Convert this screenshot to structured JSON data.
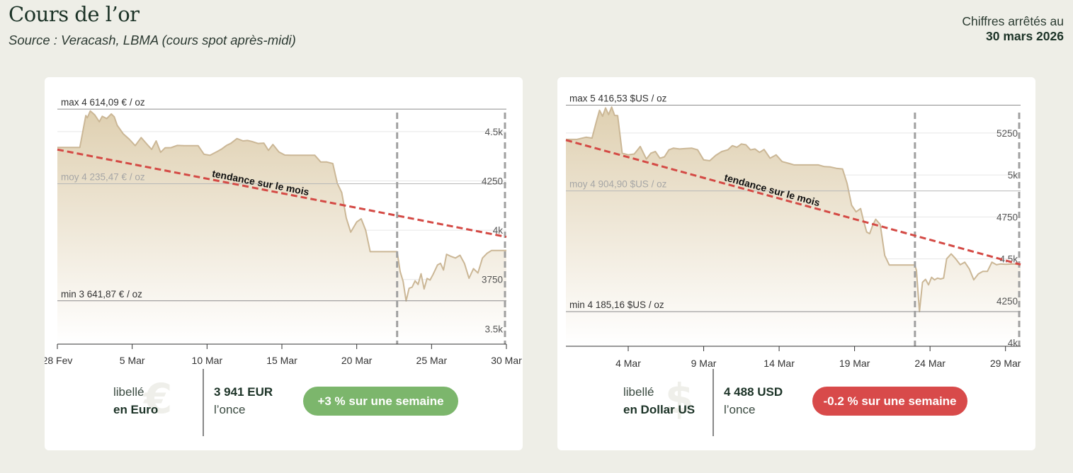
{
  "header": {
    "title": "Cours de l’or",
    "source": "Source : Veracash, LBMA (cours spot après-midi)",
    "asof_label": "Chiffres arrêtés au",
    "asof_date": "30 mars 2026"
  },
  "colors": {
    "line": "#cbb796",
    "area_top": "#dfd0b1",
    "trend": "#d44a45",
    "badge_up": "#7cb66c",
    "badge_down": "#d84a4a"
  },
  "cards": [
    {
      "currency_label": "libellé",
      "currency_name": "en Euro",
      "currency_symbol": "€",
      "price": "3 941 EUR",
      "price_unit": "l’once",
      "change_text": "+3 % sur une semaine",
      "change_direction": "up"
    },
    {
      "currency_label": "libellé",
      "currency_name": "en Dollar US",
      "currency_symbol": "$",
      "price": "4 488 USD",
      "price_unit": "l’once",
      "change_text": "-0.2 % sur une semaine",
      "change_direction": "down"
    }
  ],
  "chart_data": [
    {
      "type": "area",
      "currency": "EUR",
      "trend_label": "tendance sur le mois",
      "x_ticks": [
        {
          "day": 0,
          "label": "28 Fev"
        },
        {
          "day": 5,
          "label": "5 Mar"
        },
        {
          "day": 10,
          "label": "10 Mar"
        },
        {
          "day": 15,
          "label": "15 Mar"
        },
        {
          "day": 20,
          "label": "20 Mar"
        },
        {
          "day": 25,
          "label": "25 Mar"
        },
        {
          "day": 30,
          "label": "30 Mar"
        }
      ],
      "xlim": [
        0,
        30
      ],
      "ylim": [
        3422,
        4726
      ],
      "y_ticks": [
        {
          "value": 3500,
          "label": "3.5k"
        },
        {
          "value": 3750,
          "label": "3750"
        },
        {
          "value": 4000,
          "label": "4k"
        },
        {
          "value": 4250,
          "label": "4250"
        },
        {
          "value": 4500,
          "label": "4.5k"
        }
      ],
      "ref_lines": [
        {
          "value": 4614.09,
          "label": "max 4 614,09 € / oz",
          "kind": "max"
        },
        {
          "value": 4235.47,
          "label": "moy 4 235,47 € / oz",
          "kind": "avg"
        },
        {
          "value": 3641.87,
          "label": "min 3 641,87 € / oz",
          "kind": "min"
        }
      ],
      "markers": [
        22.7,
        30
      ],
      "trend": {
        "start": [
          0,
          4409
        ],
        "end": [
          30,
          3966
        ]
      },
      "series": [
        {
          "x": [
            0,
            0.7,
            1.5,
            1.9,
            2.0,
            2.2,
            2.5,
            2.8,
            3.0,
            3.3,
            3.6,
            3.8,
            4.0,
            4.4,
            4.8,
            5.2,
            5.6,
            6.0,
            6.3,
            6.6,
            6.9,
            7.2,
            7.6,
            8.0,
            8.5,
            9.0,
            9.4,
            9.8,
            10.2,
            10.7,
            11.0,
            11.3,
            11.6,
            12.0,
            12.4,
            12.7,
            13.0,
            13.4,
            13.8,
            14.1,
            14.4,
            14.8,
            15.2,
            15.6,
            16.0,
            16.4,
            16.8,
            17.2,
            17.6,
            18.0,
            18.4,
            18.7,
            19.0,
            19.3,
            19.6,
            20.0,
            20.3,
            20.6,
            20.9,
            21.2,
            21.5,
            21.8,
            22.1,
            22.4,
            22.7,
            22.9,
            23.1,
            23.3,
            23.5,
            23.7,
            23.9,
            24.1,
            24.3,
            24.5,
            24.7,
            24.9,
            25.1,
            25.4,
            25.6,
            25.8,
            26.0,
            26.3,
            26.6,
            26.9,
            27.2,
            27.5,
            27.8,
            28.1,
            28.4,
            28.7,
            29.0,
            29.5,
            30.0
          ],
          "values": [
            4420,
            4420,
            4420,
            4582,
            4570,
            4605,
            4585,
            4550,
            4578,
            4566,
            4590,
            4575,
            4532,
            4489,
            4462,
            4429,
            4470,
            4435,
            4410,
            4453,
            4395,
            4418,
            4419,
            4430,
            4429,
            4429,
            4429,
            4385,
            4380,
            4400,
            4413,
            4430,
            4441,
            4465,
            4453,
            4455,
            4450,
            4440,
            4442,
            4405,
            4435,
            4397,
            4381,
            4380,
            4380,
            4380,
            4380,
            4380,
            4346,
            4346,
            4338,
            4238,
            4191,
            4062,
            3990,
            4042,
            4058,
            4000,
            3891,
            3891,
            3891,
            3891,
            3891,
            3891,
            3891,
            3790,
            3740,
            3641,
            3705,
            3711,
            3743,
            3725,
            3779,
            3702,
            3755,
            3747,
            3775,
            3824,
            3832,
            3798,
            3878,
            3867,
            3859,
            3873,
            3831,
            3756,
            3805,
            3783,
            3859,
            3882,
            3897,
            3897,
            3897
          ]
        }
      ]
    },
    {
      "type": "area",
      "currency": "USD",
      "trend_label": "tendance sur le mois",
      "x_ticks": [
        {
          "day": 4,
          "label": "4 Mar"
        },
        {
          "day": 9,
          "label": "9 Mar"
        },
        {
          "day": 14,
          "label": "14 Mar"
        },
        {
          "day": 19,
          "label": "19 Mar"
        },
        {
          "day": 24,
          "label": "24 Mar"
        },
        {
          "day": 29,
          "label": "29 Mar"
        }
      ],
      "xlim": [
        -0.13,
        30
      ],
      "ylim": [
        3979,
        5524
      ],
      "y_ticks": [
        {
          "value": 4000,
          "label": "4k"
        },
        {
          "value": 4250,
          "label": "4250"
        },
        {
          "value": 4500,
          "label": "4.5k"
        },
        {
          "value": 4750,
          "label": "4750"
        },
        {
          "value": 5000,
          "label": "5k"
        },
        {
          "value": 5250,
          "label": "5250"
        }
      ],
      "ref_lines": [
        {
          "value": 5416.53,
          "label": "max 5 416,53 $US / oz",
          "kind": "max"
        },
        {
          "value": 4904.9,
          "label": "moy 4 904,90 $US / oz",
          "kind": "avg"
        },
        {
          "value": 4185.16,
          "label": "min 4 185,16 $US / oz",
          "kind": "min"
        }
      ],
      "markers": [
        23.0,
        30
      ],
      "trend": {
        "start": [
          -0.13,
          5208
        ],
        "end": [
          30,
          4466
        ]
      },
      "series": [
        {
          "x": [
            -0.13,
            0.6,
            1.2,
            1.6,
            1.9,
            2.1,
            2.3,
            2.5,
            2.7,
            2.9,
            3.1,
            3.3,
            3.6,
            4.0,
            4.4,
            4.8,
            5.2,
            5.5,
            5.8,
            6.1,
            6.4,
            6.7,
            7.0,
            7.4,
            7.8,
            8.2,
            8.6,
            9.0,
            9.4,
            9.8,
            10.2,
            10.6,
            10.9,
            11.2,
            11.5,
            11.8,
            12.1,
            12.4,
            12.7,
            13.0,
            13.4,
            13.8,
            14.2,
            14.6,
            15.0,
            15.4,
            15.8,
            16.2,
            16.6,
            17.0,
            17.4,
            17.8,
            18.2,
            18.5,
            18.8,
            19.1,
            19.4,
            19.6,
            19.8,
            20.0,
            20.2,
            20.4,
            20.7,
            21.0,
            21.3,
            21.6,
            21.9,
            22.3,
            22.7,
            23.0,
            23.1,
            23.3,
            23.5,
            23.7,
            23.9,
            24.1,
            24.3,
            24.5,
            24.7,
            24.9,
            25.1,
            25.4,
            25.7,
            26.0,
            26.3,
            26.6,
            26.9,
            27.2,
            27.5,
            27.8,
            28.1,
            28.4,
            28.7,
            29.0,
            29.5,
            30.0
          ],
          "values": [
            5212,
            5212,
            5225,
            5220,
            5323,
            5386,
            5350,
            5400,
            5360,
            5405,
            5355,
            5354,
            5130,
            5120,
            5125,
            5170,
            5095,
            5130,
            5140,
            5100,
            5108,
            5150,
            5160,
            5155,
            5158,
            5160,
            5150,
            5090,
            5085,
            5117,
            5140,
            5150,
            5175,
            5165,
            5185,
            5180,
            5150,
            5155,
            5135,
            5152,
            5100,
            5120,
            5080,
            5070,
            5060,
            5060,
            5060,
            5060,
            5060,
            5050,
            5048,
            5040,
            5036,
            4950,
            4820,
            4780,
            4800,
            4725,
            4660,
            4650,
            4700,
            4736,
            4705,
            4520,
            4463,
            4463,
            4463,
            4463,
            4463,
            4463,
            4430,
            4185,
            4360,
            4378,
            4345,
            4390,
            4375,
            4385,
            4380,
            4385,
            4500,
            4530,
            4500,
            4465,
            4480,
            4440,
            4375,
            4410,
            4425,
            4425,
            4480,
            4465,
            4470,
            4468,
            4470,
            4466
          ]
        }
      ]
    }
  ]
}
